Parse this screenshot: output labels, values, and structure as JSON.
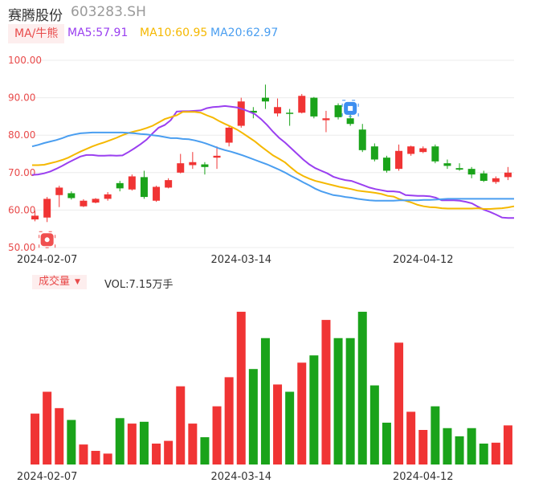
{
  "header": {
    "name": "赛腾股份",
    "code": "603283.SH"
  },
  "ma_bar": {
    "tag": "MA/牛熊",
    "ma5": "MA5:57.91",
    "ma10": "MA10:60.95",
    "ma20": "MA20:62.97"
  },
  "volume_bar": {
    "tag": "成交量",
    "text": "VOL:7.15万手"
  },
  "colors": {
    "up": "#f03434",
    "down": "#1aa31a",
    "ma5": "#9a3ff0",
    "ma10": "#f5b800",
    "ma20": "#4a9ef0",
    "grid": "#ececec",
    "axis_text": "#e84a4a"
  },
  "markers": {
    "low_marker_icon": "low-point-marker-icon",
    "blue_marker_icon": "event-marker-icon"
  },
  "chart_data": [
    {
      "type": "candlestick",
      "y_ticks": [
        "100.00",
        "90.00",
        "80.00",
        "70.00",
        "60.00",
        "50.00"
      ],
      "ylim": [
        50,
        100
      ],
      "x_tick_labels": [
        {
          "label": "2024-02-07",
          "index": 1
        },
        {
          "label": "2024-03-14",
          "index": 17
        },
        {
          "label": "2024-04-12",
          "index": 32
        }
      ],
      "candles": [
        {
          "o": 57.5,
          "h": 59.8,
          "l": 57.0,
          "c": 58.5
        },
        {
          "o": 58.0,
          "h": 63.5,
          "l": 56.8,
          "c": 63.0
        },
        {
          "o": 64.0,
          "h": 66.5,
          "l": 60.8,
          "c": 66.0
        },
        {
          "o": 64.5,
          "h": 65.0,
          "l": 62.8,
          "c": 63.2
        },
        {
          "o": 61.0,
          "h": 62.9,
          "l": 60.8,
          "c": 62.5
        },
        {
          "o": 62.0,
          "h": 63.2,
          "l": 61.8,
          "c": 63.0
        },
        {
          "o": 63.0,
          "h": 64.8,
          "l": 62.5,
          "c": 64.2
        },
        {
          "o": 67.2,
          "h": 67.8,
          "l": 65.0,
          "c": 65.8
        },
        {
          "o": 65.5,
          "h": 69.5,
          "l": 65.2,
          "c": 69.0
        },
        {
          "o": 68.8,
          "h": 70.5,
          "l": 63.0,
          "c": 63.5
        },
        {
          "o": 62.5,
          "h": 66.5,
          "l": 62.2,
          "c": 66.2
        },
        {
          "o": 66.0,
          "h": 68.5,
          "l": 65.8,
          "c": 68.0
        },
        {
          "o": 70.0,
          "h": 75.0,
          "l": 69.8,
          "c": 72.5
        },
        {
          "o": 72.0,
          "h": 75.5,
          "l": 71.0,
          "c": 72.8
        },
        {
          "o": 72.2,
          "h": 72.8,
          "l": 69.5,
          "c": 71.5
        },
        {
          "o": 74.0,
          "h": 77.0,
          "l": 71.0,
          "c": 74.5
        },
        {
          "o": 78.0,
          "h": 82.5,
          "l": 77.0,
          "c": 82.0
        },
        {
          "o": 82.5,
          "h": 90.0,
          "l": 82.0,
          "c": 89.0
        },
        {
          "o": 86.5,
          "h": 87.5,
          "l": 84.5,
          "c": 86.0
        },
        {
          "o": 90.0,
          "h": 93.5,
          "l": 87.0,
          "c": 89.0
        },
        {
          "o": 85.8,
          "h": 89.8,
          "l": 85.0,
          "c": 87.5
        },
        {
          "o": 86.0,
          "h": 87.0,
          "l": 82.5,
          "c": 85.8
        },
        {
          "o": 86.0,
          "h": 91.0,
          "l": 85.8,
          "c": 90.5
        },
        {
          "o": 90.0,
          "h": 90.2,
          "l": 84.5,
          "c": 85.0
        },
        {
          "o": 84.0,
          "h": 86.5,
          "l": 80.8,
          "c": 84.5
        },
        {
          "o": 88.0,
          "h": 88.5,
          "l": 84.2,
          "c": 84.8
        },
        {
          "o": 84.5,
          "h": 88.0,
          "l": 82.5,
          "c": 83.0
        },
        {
          "o": 81.5,
          "h": 83.0,
          "l": 75.5,
          "c": 76.0
        },
        {
          "o": 77.0,
          "h": 77.8,
          "l": 73.0,
          "c": 73.5
        },
        {
          "o": 74.0,
          "h": 74.5,
          "l": 70.0,
          "c": 70.5
        },
        {
          "o": 71.0,
          "h": 77.5,
          "l": 70.5,
          "c": 75.8
        },
        {
          "o": 75.0,
          "h": 77.2,
          "l": 74.5,
          "c": 77.0
        },
        {
          "o": 75.5,
          "h": 77.0,
          "l": 75.2,
          "c": 76.5
        },
        {
          "o": 77.0,
          "h": 77.5,
          "l": 72.5,
          "c": 73.0
        },
        {
          "o": 72.5,
          "h": 73.5,
          "l": 71.0,
          "c": 71.8
        },
        {
          "o": 71.2,
          "h": 72.5,
          "l": 70.5,
          "c": 70.8
        },
        {
          "o": 71.0,
          "h": 71.5,
          "l": 68.5,
          "c": 69.5
        },
        {
          "o": 69.8,
          "h": 70.5,
          "l": 67.5,
          "c": 67.8
        },
        {
          "o": 67.5,
          "h": 69.0,
          "l": 67.0,
          "c": 68.5
        },
        {
          "o": 68.8,
          "h": 71.5,
          "l": 68.0,
          "c": 70.0
        }
      ],
      "series": [
        {
          "name": "MA5",
          "values": [
            69.4,
            69.5,
            69.8,
            70.3,
            71.0,
            71.8,
            72.7,
            73.5,
            74.3,
            74.7,
            74.7,
            74.5,
            74.5,
            74.6,
            74.5,
            74.6,
            75.5,
            76.5,
            77.6,
            78.8,
            80.5,
            82.0,
            82.7,
            84.0,
            86.3,
            86.4,
            86.4,
            86.5,
            86.6,
            87.2,
            87.5,
            87.6,
            87.8,
            87.6,
            87.4,
            86.9,
            86.3,
            85.6,
            84.3,
            82.7,
            80.9,
            79.3,
            78.0,
            76.5,
            75.0,
            73.5,
            72.2,
            71.2,
            70.5,
            69.8,
            68.9,
            68.4,
            68.0,
            67.8,
            67.2,
            66.6,
            66.0,
            65.6,
            65.3,
            65.0,
            65.0,
            64.8,
            64.0,
            63.9,
            63.8,
            63.8,
            63.7,
            63.3,
            62.6,
            62.6,
            62.6,
            62.5,
            62.2,
            61.8,
            60.9,
            60.1,
            59.5,
            58.8,
            58.0,
            57.9,
            57.9
          ]
        },
        {
          "name": "MA10",
          "values": [
            72.0,
            72.0,
            72.1,
            72.5,
            72.9,
            73.4,
            74.0,
            74.8,
            75.6,
            76.3,
            77.0,
            77.6,
            78.1,
            78.7,
            79.3,
            80.0,
            80.6,
            81.0,
            81.4,
            81.9,
            82.5,
            83.4,
            84.3,
            84.8,
            85.3,
            86.2,
            86.2,
            86.2,
            86.0,
            85.3,
            84.7,
            83.8,
            83.0,
            82.3,
            81.5,
            80.5,
            79.4,
            78.3,
            77.0,
            75.8,
            74.6,
            73.7,
            72.7,
            71.3,
            70.0,
            69.1,
            68.4,
            67.8,
            67.4,
            67.0,
            66.6,
            66.2,
            65.9,
            65.6,
            65.2,
            65.0,
            64.8,
            64.6,
            64.3,
            63.8,
            63.6,
            62.9,
            62.5,
            62.0,
            61.4,
            61.0,
            60.8,
            60.7,
            60.5,
            60.4,
            60.4,
            60.4,
            60.4,
            60.4,
            60.5,
            60.3,
            60.3,
            60.4,
            60.5,
            60.7,
            61.0
          ]
        },
        {
          "name": "MA20",
          "values": [
            77.0,
            77.4,
            77.9,
            78.3,
            78.7,
            79.2,
            79.8,
            80.2,
            80.5,
            80.6,
            80.7,
            80.7,
            80.7,
            80.7,
            80.7,
            80.7,
            80.6,
            80.5,
            80.3,
            80.2,
            80.0,
            79.8,
            79.5,
            79.2,
            79.2,
            79.0,
            78.9,
            78.6,
            78.2,
            77.7,
            77.1,
            76.5,
            76.0,
            75.6,
            75.1,
            74.6,
            74.0,
            73.4,
            72.8,
            72.2,
            71.5,
            70.8,
            70.0,
            69.1,
            68.3,
            67.4,
            66.6,
            65.7,
            65.0,
            64.5,
            64.0,
            63.8,
            63.5,
            63.3,
            63.0,
            62.8,
            62.6,
            62.5,
            62.5,
            62.5,
            62.5,
            62.6,
            62.6,
            62.6,
            62.6,
            62.7,
            62.7,
            62.8,
            62.9,
            63.0,
            63.0,
            63.0,
            63.0,
            63.0,
            63.0,
            63.0,
            63.0,
            63.0,
            63.0,
            63.0,
            63.0
          ]
        }
      ]
    },
    {
      "type": "bar",
      "title": "成交量",
      "x_tick_labels": [
        {
          "label": "2024-02-07",
          "index": 1
        },
        {
          "label": "2024-03-14",
          "index": 17
        },
        {
          "label": "2024-04-12",
          "index": 32
        }
      ],
      "volumes": [
        5.6,
        8.0,
        6.2,
        4.9,
        2.2,
        1.5,
        1.2,
        5.1,
        4.5,
        4.7,
        2.3,
        2.6,
        8.6,
        4.5,
        3.0,
        6.4,
        9.6,
        16.8,
        10.5,
        13.9,
        8.8,
        8.0,
        11.2,
        12.0,
        15.9,
        13.9,
        13.9,
        16.8,
        8.7,
        4.6,
        13.4,
        5.8,
        3.8,
        6.4,
        4.0,
        3.1,
        4.0,
        2.3,
        2.4,
        4.3
      ],
      "ylim": [
        0,
        17.5
      ]
    }
  ]
}
